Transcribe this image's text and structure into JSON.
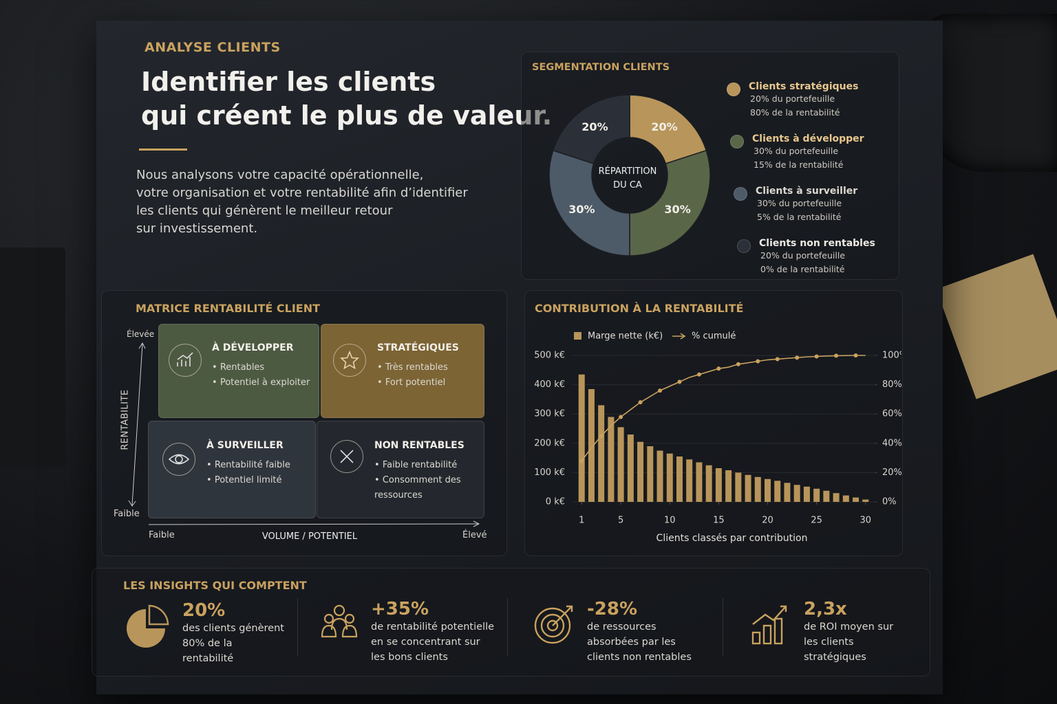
{
  "header": {
    "eyebrow": "ANALYSE CLIENTS",
    "title_lines": [
      "Identifier les clients",
      "qui créent le plus de valeur."
    ],
    "paragraph_lines": [
      "Nous analysons votre capacité opérationnelle,",
      "votre organisation et votre rentabilité afin d’identifier",
      "les clients qui génèrent le meilleur retour",
      "sur investissement."
    ]
  },
  "chart_data": [
    {
      "type": "pie",
      "title": "SEGMENTATION CLIENTS",
      "center_label_lines": [
        "RÉPARTITION",
        "DU CA"
      ],
      "categories": [
        "Clients stratégiques",
        "Clients à développer",
        "Clients à surveiller",
        "Clients non rentables"
      ],
      "values": [
        20,
        30,
        30,
        20
      ],
      "value_labels": [
        "20%",
        "30%",
        "30%",
        "20%"
      ],
      "colors": [
        "#b8955a",
        "#5a6648",
        "#4d5a68",
        "#2b3038"
      ],
      "legend_details": [
        [
          "20% du portefeuille",
          "80% de la rentabilité"
        ],
        [
          "30% du portefeuille",
          "15% de la rentabilité"
        ],
        [
          "30% du portefeuille",
          "5% de la rentabilité"
        ],
        [
          "20% du portefeuille",
          "0% de la rentabilité"
        ]
      ]
    },
    {
      "type": "pareto",
      "title": "CONTRIBUTION À LA RENTABILITÉ",
      "x_label": "Clients classés par contribution",
      "x": [
        1,
        2,
        3,
        4,
        5,
        6,
        7,
        8,
        9,
        10,
        11,
        12,
        13,
        14,
        15,
        16,
        17,
        18,
        19,
        20,
        21,
        22,
        23,
        24,
        25,
        26,
        27,
        28,
        29,
        30
      ],
      "xlim": [
        0,
        31
      ],
      "xticks": [
        1,
        5,
        10,
        15,
        20,
        25,
        30
      ],
      "ylim": [
        0,
        500
      ],
      "yticks": [
        {
          "value": 0,
          "label": "0 k€"
        },
        {
          "value": 100,
          "label": "100 k€"
        },
        {
          "value": 200,
          "label": "200 k€"
        },
        {
          "value": 300,
          "label": "300 k€"
        },
        {
          "value": 400,
          "label": "400 k€"
        },
        {
          "value": 500,
          "label": "500 k€"
        }
      ],
      "y2lim": [
        0,
        100
      ],
      "y2ticks": [
        {
          "value": 0,
          "label": "0%"
        },
        {
          "value": 20,
          "label": "20%"
        },
        {
          "value": 40,
          "label": "40%"
        },
        {
          "value": 60,
          "label": "60%"
        },
        {
          "value": 80,
          "label": "80%"
        },
        {
          "value": 100,
          "label": "100%"
        }
      ],
      "series": [
        {
          "name": "Marge nette (k€)",
          "color": "#b8955a",
          "kind": "bar",
          "values": [
            435,
            385,
            330,
            290,
            255,
            230,
            205,
            190,
            175,
            165,
            155,
            145,
            135,
            125,
            115,
            108,
            100,
            92,
            85,
            78,
            72,
            65,
            58,
            52,
            45,
            38,
            30,
            22,
            15,
            8
          ]
        },
        {
          "name": "% cumulé",
          "color": "#c9a25f",
          "kind": "line",
          "axis": "y2",
          "values": [
            28,
            37,
            45,
            52,
            58,
            63,
            68,
            72,
            76,
            79,
            82,
            85,
            87,
            89,
            91,
            92,
            94,
            95,
            96,
            97,
            97.5,
            98,
            98.5,
            99,
            99.3,
            99.6,
            99.8,
            99.9,
            100,
            100
          ]
        }
      ]
    }
  ],
  "matrix": {
    "title": "MATRICE RENTABILITÉ CLIENT",
    "y_axis": {
      "label": "RENTABILITE",
      "high": "Élevée",
      "low": "Faible"
    },
    "x_axis": {
      "label": "VOLUME / POTENTIEL",
      "low": "Faible",
      "high": "Élevé"
    },
    "quadrants": [
      {
        "title": "À DÉVELOPPER",
        "bullets": [
          "Rentables",
          "Potentiel à exploiter"
        ]
      },
      {
        "title": "STRATÉGIQUES",
        "bullets": [
          "Très rentables",
          "Fort potentiel"
        ]
      },
      {
        "title": "À SURVEILLER",
        "bullets": [
          "Rentabilité faible",
          "Potentiel limité"
        ]
      },
      {
        "title": "NON RENTABLES",
        "bullets": [
          "Faible rentabilité",
          "Consomment des ressources"
        ]
      }
    ]
  },
  "insights": {
    "title": "LES INSIGHTS QUI COMPTENT",
    "items": [
      {
        "value": "20%",
        "text": "des clients génèrent 80% de la rentabilité"
      },
      {
        "value": "+35%",
        "text": "de rentabilité potentielle en se concentrant sur les bons clients"
      },
      {
        "value": "-28%",
        "text": "de ressources absorbées par les clients non rentables"
      },
      {
        "value": "2,3x",
        "text": "de ROI moyen sur les clients stratégiques"
      }
    ]
  }
}
